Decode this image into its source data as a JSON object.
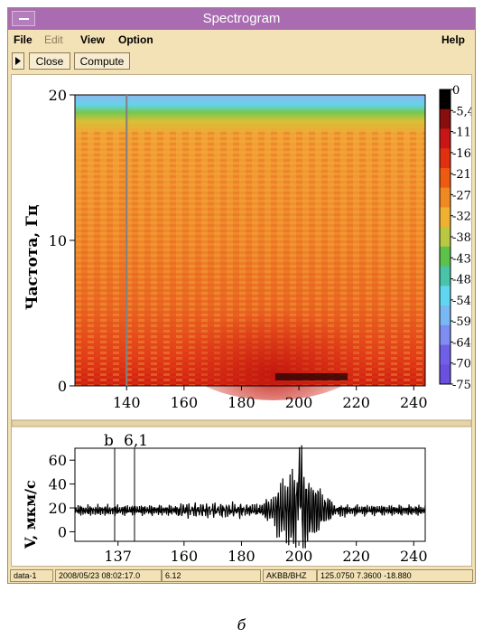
{
  "window": {
    "title": "Spectrogram"
  },
  "menu": {
    "file": "File",
    "edit": "Edit",
    "view": "View",
    "option": "Option",
    "help": "Help"
  },
  "toolbar": {
    "close": "Close",
    "compute": "Compute"
  },
  "spectrogram": {
    "ylabel": "Частота, Гц",
    "y_ticks": [
      "0",
      "10",
      "20"
    ],
    "x_ticks": [
      "140",
      "160",
      "180",
      "200",
      "220",
      "240"
    ],
    "marker_x": 140,
    "colorbar_labels": [
      "0",
      "-5,4",
      "-11",
      "-16",
      "-21",
      "-27",
      "-32",
      "-38",
      "-43",
      "-48",
      "-54",
      "-59",
      "-64",
      "-70",
      "-75"
    ],
    "colorbar_colors": [
      "#000000",
      "#8a0d0d",
      "#c81515",
      "#e03010",
      "#ee5a10",
      "#f08a20",
      "#f0b030",
      "#b8c840",
      "#5cc24a",
      "#48c4a8",
      "#60d6f0",
      "#78b8f4",
      "#7e8df2",
      "#7060e8",
      "#6a50e0"
    ]
  },
  "seismogram": {
    "ylabel": "V, мкм/с",
    "y_ticks": [
      "0",
      "20",
      "40",
      "60"
    ],
    "x_ticks": [
      "137",
      "160",
      "180",
      "200",
      "220",
      "240"
    ],
    "marker_labels": [
      "b",
      "6,1"
    ]
  },
  "status": {
    "station_id": "data-1",
    "timestamp": "2008/05/23 08:02:17.0",
    "value": "6.12",
    "channel": "AKBB/BHZ",
    "coords": "125.0750  7.3600  -18.880"
  },
  "caption": "б"
}
